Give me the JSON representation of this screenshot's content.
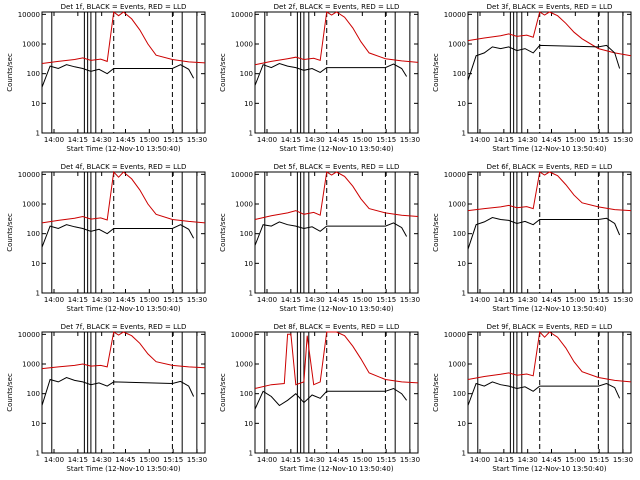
{
  "chart_data": [
    {
      "type": "line",
      "title": "Det 1f, BLACK = Events, RED = LLD",
      "xlabel": "Start Time (12-Nov-10 13:50:40)",
      "ylabel": "Counts/sec",
      "xticks": [
        "14:00",
        "14:15",
        "14:30",
        "14:45",
        "15:00",
        "15:15",
        "15:30"
      ],
      "yticks": [
        "1",
        "10",
        "100",
        "1000",
        "10000"
      ],
      "ylim": [
        1,
        12000
      ],
      "yscale": "log",
      "series": [
        {
          "color": "#cc0000",
          "x": [
            0.0,
            0.1,
            0.2,
            0.25,
            0.3,
            0.36,
            0.4,
            0.44,
            0.47,
            0.5,
            0.55,
            0.6,
            0.65,
            0.7,
            0.8,
            0.9,
            1.0
          ],
          "values": [
            220,
            260,
            300,
            340,
            280,
            310,
            260,
            12000,
            9000,
            12000,
            7000,
            3000,
            1000,
            420,
            300,
            250,
            230
          ]
        },
        {
          "color": "#000000",
          "x": [
            0.0,
            0.05,
            0.1,
            0.15,
            0.2,
            0.25,
            0.3,
            0.35,
            0.4,
            0.44,
            0.8,
            0.85,
            0.9,
            0.93
          ],
          "values": [
            35,
            180,
            150,
            200,
            170,
            150,
            120,
            140,
            100,
            150,
            150,
            200,
            140,
            70
          ]
        }
      ]
    },
    {
      "type": "line",
      "title": "Det 2f, BLACK = Events, RED = LLD",
      "xlabel": "Start Time (12-Nov-10 13:50:40)",
      "ylabel": "Counts/sec",
      "xticks": [
        "14:00",
        "14:15",
        "14:30",
        "14:45",
        "15:00",
        "15:15",
        "15:30"
      ],
      "yticks": [
        "1",
        "10",
        "100",
        "1000",
        "10000"
      ],
      "ylim": [
        1,
        12000
      ],
      "yscale": "log",
      "series": [
        {
          "color": "#cc0000",
          "x": [
            0.0,
            0.1,
            0.2,
            0.25,
            0.3,
            0.36,
            0.4,
            0.44,
            0.47,
            0.5,
            0.55,
            0.6,
            0.65,
            0.7,
            0.8,
            0.9,
            1.0
          ],
          "values": [
            200,
            260,
            320,
            360,
            300,
            330,
            280,
            12000,
            9500,
            12000,
            8000,
            3500,
            1200,
            500,
            320,
            270,
            240
          ]
        },
        {
          "color": "#000000",
          "x": [
            0.0,
            0.05,
            0.1,
            0.15,
            0.2,
            0.25,
            0.3,
            0.35,
            0.4,
            0.44,
            0.8,
            0.85,
            0.9,
            0.93
          ],
          "values": [
            40,
            200,
            160,
            220,
            180,
            160,
            130,
            150,
            110,
            160,
            160,
            210,
            150,
            80
          ]
        }
      ]
    },
    {
      "type": "line",
      "title": "Det 3f, BLACK = Events, RED = LLD",
      "xlabel": "Start Time (12-Nov-10 13:50:40)",
      "ylabel": "Counts/sec",
      "xticks": [
        "14:00",
        "14:15",
        "14:30",
        "14:45",
        "15:00",
        "15:15",
        "15:30"
      ],
      "yticks": [
        "1",
        "10",
        "100",
        "1000",
        "10000"
      ],
      "ylim": [
        1,
        12000
      ],
      "yscale": "log",
      "series": [
        {
          "color": "#cc0000",
          "x": [
            0.0,
            0.1,
            0.2,
            0.25,
            0.3,
            0.36,
            0.4,
            0.44,
            0.47,
            0.5,
            0.55,
            0.6,
            0.65,
            0.7,
            0.8,
            0.9,
            1.0
          ],
          "values": [
            1300,
            1600,
            1900,
            2200,
            1800,
            2000,
            1700,
            12000,
            9500,
            12000,
            9000,
            5000,
            2500,
            1500,
            700,
            500,
            400
          ]
        },
        {
          "color": "#000000",
          "x": [
            0.0,
            0.05,
            0.1,
            0.15,
            0.2,
            0.25,
            0.3,
            0.35,
            0.4,
            0.44,
            0.8,
            0.85,
            0.9,
            0.93
          ],
          "values": [
            60,
            400,
            500,
            800,
            700,
            800,
            600,
            700,
            500,
            900,
            800,
            900,
            500,
            150
          ]
        }
      ]
    },
    {
      "type": "line",
      "title": "Det 4f, BLACK = Events, RED = LLD",
      "xlabel": "Start Time (12-Nov-10 13:50:40)",
      "ylabel": "Counts/sec",
      "xticks": [
        "14:00",
        "14:15",
        "14:30",
        "14:45",
        "15:00",
        "15:15",
        "15:30"
      ],
      "yticks": [
        "1",
        "10",
        "100",
        "1000",
        "10000"
      ],
      "ylim": [
        1,
        12000
      ],
      "yscale": "log",
      "series": [
        {
          "color": "#cc0000",
          "x": [
            0.0,
            0.1,
            0.2,
            0.25,
            0.3,
            0.36,
            0.4,
            0.44,
            0.47,
            0.5,
            0.55,
            0.6,
            0.65,
            0.7,
            0.8,
            0.9,
            1.0
          ],
          "values": [
            230,
            280,
            330,
            380,
            310,
            340,
            290,
            12000,
            8000,
            12000,
            7000,
            3000,
            1000,
            450,
            300,
            260,
            230
          ]
        },
        {
          "color": "#000000",
          "x": [
            0.0,
            0.05,
            0.1,
            0.15,
            0.2,
            0.25,
            0.3,
            0.35,
            0.4,
            0.44,
            0.8,
            0.85,
            0.9,
            0.93
          ],
          "values": [
            35,
            180,
            150,
            200,
            170,
            150,
            120,
            140,
            100,
            150,
            150,
            200,
            140,
            70
          ]
        }
      ]
    },
    {
      "type": "line",
      "title": "Det 5f, BLACK = Events, RED = LLD",
      "xlabel": "Start Time (12-Nov-10 13:50:40)",
      "ylabel": "Counts/sec",
      "xticks": [
        "14:00",
        "14:15",
        "14:30",
        "14:45",
        "15:00",
        "15:15",
        "15:30"
      ],
      "yticks": [
        "1",
        "10",
        "100",
        "1000",
        "10000"
      ],
      "ylim": [
        1,
        12000
      ],
      "yscale": "log",
      "series": [
        {
          "color": "#cc0000",
          "x": [
            0.0,
            0.1,
            0.2,
            0.25,
            0.3,
            0.36,
            0.4,
            0.44,
            0.47,
            0.5,
            0.55,
            0.6,
            0.65,
            0.7,
            0.8,
            0.9,
            1.0
          ],
          "values": [
            300,
            400,
            500,
            600,
            450,
            520,
            420,
            12000,
            9500,
            12000,
            8500,
            4000,
            1500,
            700,
            500,
            420,
            380
          ]
        },
        {
          "color": "#000000",
          "x": [
            0.0,
            0.05,
            0.1,
            0.15,
            0.2,
            0.25,
            0.3,
            0.35,
            0.4,
            0.44,
            0.8,
            0.85,
            0.9,
            0.93
          ],
          "values": [
            40,
            200,
            180,
            250,
            200,
            180,
            150,
            170,
            120,
            180,
            180,
            230,
            160,
            80
          ]
        }
      ]
    },
    {
      "type": "line",
      "title": "Det 6f, BLACK = Events, RED = LLD",
      "xlabel": "Start Time (12-Nov-10 13:50:40)",
      "ylabel": "Counts/sec",
      "xticks": [
        "14:00",
        "14:15",
        "14:30",
        "14:45",
        "15:00",
        "15:15",
        "15:30"
      ],
      "yticks": [
        "1",
        "10",
        "100",
        "1000",
        "10000"
      ],
      "ylim": [
        1,
        12000
      ],
      "yscale": "log",
      "series": [
        {
          "color": "#cc0000",
          "x": [
            0.0,
            0.1,
            0.2,
            0.25,
            0.3,
            0.36,
            0.4,
            0.44,
            0.47,
            0.5,
            0.55,
            0.6,
            0.65,
            0.7,
            0.8,
            0.9,
            1.0
          ],
          "values": [
            600,
            700,
            800,
            900,
            750,
            820,
            700,
            12000,
            9500,
            12000,
            9000,
            4500,
            2000,
            1100,
            800,
            650,
            600
          ]
        },
        {
          "color": "#000000",
          "x": [
            0.0,
            0.05,
            0.1,
            0.15,
            0.2,
            0.25,
            0.3,
            0.35,
            0.4,
            0.44,
            0.8,
            0.85,
            0.9,
            0.93
          ],
          "values": [
            30,
            200,
            250,
            350,
            300,
            280,
            220,
            260,
            200,
            300,
            300,
            330,
            220,
            90
          ]
        }
      ]
    },
    {
      "type": "line",
      "title": "Det 7f, BLACK = Events, RED = LLD",
      "xlabel": "Start Time (12-Nov-10 13:50:40)",
      "ylabel": "Counts/sec",
      "xticks": [
        "14:00",
        "14:15",
        "14:30",
        "14:45",
        "15:00",
        "15:15",
        "15:30"
      ],
      "yticks": [
        "1",
        "10",
        "100",
        "1000",
        "10000"
      ],
      "ylim": [
        1,
        12000
      ],
      "yscale": "log",
      "series": [
        {
          "color": "#cc0000",
          "x": [
            0.0,
            0.1,
            0.2,
            0.25,
            0.3,
            0.36,
            0.4,
            0.44,
            0.47,
            0.5,
            0.55,
            0.6,
            0.65,
            0.7,
            0.8,
            0.9,
            1.0
          ],
          "values": [
            700,
            800,
            900,
            1000,
            850,
            900,
            800,
            12000,
            9500,
            12000,
            9000,
            5000,
            2200,
            1200,
            900,
            800,
            750
          ]
        },
        {
          "color": "#000000",
          "x": [
            0.0,
            0.05,
            0.1,
            0.15,
            0.2,
            0.25,
            0.3,
            0.35,
            0.4,
            0.44,
            0.8,
            0.85,
            0.9,
            0.93
          ],
          "values": [
            40,
            300,
            250,
            350,
            280,
            250,
            200,
            230,
            180,
            250,
            220,
            260,
            180,
            80
          ]
        }
      ]
    },
    {
      "type": "line",
      "title": "Det 8f, BLACK = Events, RED = LLD",
      "xlabel": "Start Time (12-Nov-10 13:50:40)",
      "ylabel": "Counts/sec",
      "xticks": [
        "14:00",
        "14:15",
        "14:30",
        "14:45",
        "15:00",
        "15:15",
        "15:30"
      ],
      "yticks": [
        "1",
        "10",
        "100",
        "1000",
        "10000"
      ],
      "ylim": [
        1,
        12000
      ],
      "yscale": "log",
      "series": [
        {
          "color": "#cc0000",
          "x": [
            0.0,
            0.1,
            0.18,
            0.2,
            0.22,
            0.25,
            0.3,
            0.32,
            0.36,
            0.4,
            0.44,
            0.5,
            0.55,
            0.6,
            0.65,
            0.7,
            0.8,
            0.9,
            1.0
          ],
          "values": [
            150,
            200,
            220,
            10000,
            10000,
            200,
            250,
            9000,
            200,
            250,
            12000,
            12000,
            9000,
            4000,
            1500,
            500,
            300,
            250,
            230
          ]
        },
        {
          "color": "#000000",
          "x": [
            0.0,
            0.05,
            0.1,
            0.15,
            0.2,
            0.25,
            0.3,
            0.35,
            0.4,
            0.44,
            0.8,
            0.85,
            0.9,
            0.93
          ],
          "values": [
            30,
            120,
            80,
            40,
            60,
            100,
            50,
            90,
            70,
            120,
            120,
            150,
            100,
            60
          ]
        }
      ]
    },
    {
      "type": "line",
      "title": "Det 9f, BLACK = Events, RED = LLD",
      "xlabel": "Start Time (12-Nov-10 13:50:40)",
      "ylabel": "Counts/sec",
      "xticks": [
        "14:00",
        "14:15",
        "14:30",
        "14:45",
        "15:00",
        "15:15",
        "15:30"
      ],
      "yticks": [
        "1",
        "10",
        "100",
        "1000",
        "10000"
      ],
      "ylim": [
        1,
        12000
      ],
      "yscale": "log",
      "series": [
        {
          "color": "#cc0000",
          "x": [
            0.0,
            0.1,
            0.2,
            0.25,
            0.3,
            0.36,
            0.4,
            0.44,
            0.47,
            0.5,
            0.55,
            0.6,
            0.65,
            0.7,
            0.8,
            0.9,
            1.0
          ],
          "values": [
            300,
            380,
            450,
            500,
            420,
            460,
            400,
            12000,
            8000,
            12000,
            8000,
            3500,
            1200,
            550,
            350,
            280,
            250
          ]
        },
        {
          "color": "#000000",
          "x": [
            0.0,
            0.05,
            0.1,
            0.15,
            0.2,
            0.25,
            0.3,
            0.35,
            0.4,
            0.44,
            0.8,
            0.85,
            0.9,
            0.93
          ],
          "values": [
            40,
            220,
            180,
            250,
            200,
            180,
            150,
            170,
            120,
            180,
            180,
            220,
            160,
            70
          ]
        }
      ]
    }
  ]
}
